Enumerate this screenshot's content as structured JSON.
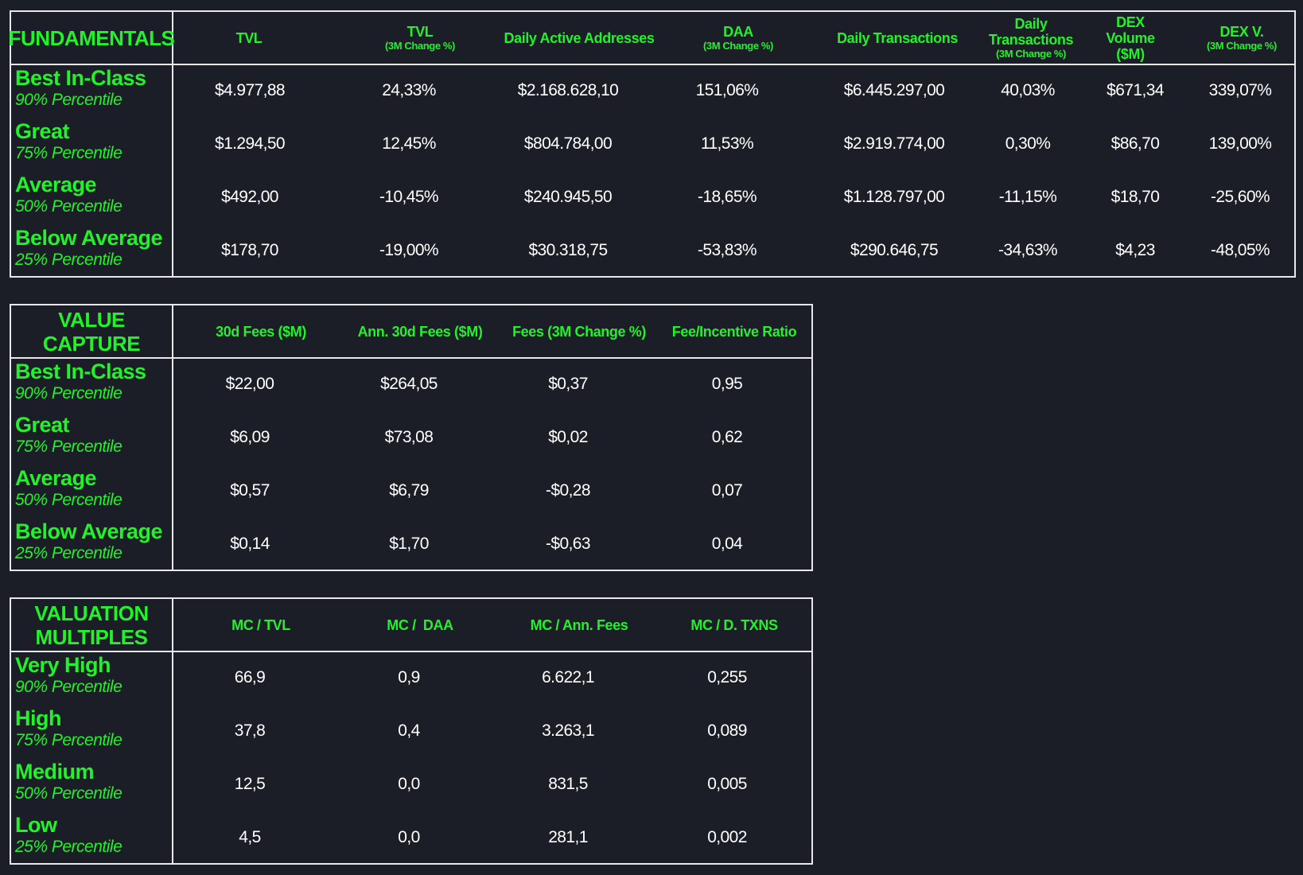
{
  "colors": {
    "background": "#1c1e27",
    "accent": "#22f22a",
    "text": "#ffffff",
    "border": "#e8e8ec"
  },
  "fundamentals": {
    "title": "FUNDAMENTALS",
    "columns": [
      {
        "label": "TVL",
        "sub": ""
      },
      {
        "label": "TVL",
        "sub": "(3M Change %)"
      },
      {
        "label": "Daily Active Addresses",
        "sub": ""
      },
      {
        "label": "DAA",
        "sub": "(3M Change %)"
      },
      {
        "label": "Daily Transactions",
        "sub": ""
      },
      {
        "label": "Daily Transactions",
        "sub": "(3M Change %)"
      },
      {
        "label": "DEX Volume ($M)",
        "sub": ""
      },
      {
        "label": "DEX V.",
        "sub": "(3M Change %)"
      }
    ],
    "rows": [
      {
        "label": "Best In-Class",
        "sub": "90% Percentile",
        "values": [
          "$4.977,88",
          "24,33%",
          "$2.168.628,10",
          "151,06%",
          "$6.445.297,00",
          "40,03%",
          "$671,34",
          "339,07%"
        ]
      },
      {
        "label": "Great",
        "sub": "75% Percentile",
        "values": [
          "$1.294,50",
          "12,45%",
          "$804.784,00",
          "11,53%",
          "$2.919.774,00",
          "0,30%",
          "$86,70",
          "139,00%"
        ]
      },
      {
        "label": "Average",
        "sub": "50% Percentile",
        "values": [
          "$492,00",
          "-10,45%",
          "$240.945,50",
          "-18,65%",
          "$1.128.797,00",
          "-11,15%",
          "$18,70",
          "-25,60%"
        ]
      },
      {
        "label": "Below Average",
        "sub": "25% Percentile",
        "values": [
          "$178,70",
          "-19,00%",
          "$30.318,75",
          "-53,83%",
          "$290.646,75",
          "-34,63%",
          "$4,23",
          "-48,05%"
        ]
      }
    ]
  },
  "value_capture": {
    "title": "VALUE CAPTURE",
    "columns": [
      {
        "label": "30d Fees ($M)",
        "sub": ""
      },
      {
        "label": "Ann. 30d Fees ($M)",
        "sub": ""
      },
      {
        "label": "Fees (3M Change %)",
        "sub": ""
      },
      {
        "label": "Fee/Incentive Ratio",
        "sub": ""
      }
    ],
    "rows": [
      {
        "label": "Best In-Class",
        "sub": "90% Percentile",
        "values": [
          "$22,00",
          "$264,05",
          "$0,37",
          "0,95"
        ]
      },
      {
        "label": "Great",
        "sub": "75% Percentile",
        "values": [
          "$6,09",
          "$73,08",
          "$0,02",
          "0,62"
        ]
      },
      {
        "label": "Average",
        "sub": "50% Percentile",
        "values": [
          "$0,57",
          "$6,79",
          "-$0,28",
          "0,07"
        ]
      },
      {
        "label": "Below Average",
        "sub": "25% Percentile",
        "values": [
          "$0,14",
          "$1,70",
          "-$0,63",
          "0,04"
        ]
      }
    ]
  },
  "valuation_multiples": {
    "title": "VALUATION MULTIPLES",
    "columns": [
      {
        "label": "MC / TVL",
        "sub": ""
      },
      {
        "label": "MC /  DAA",
        "sub": ""
      },
      {
        "label": "MC / Ann. Fees",
        "sub": ""
      },
      {
        "label": "MC / D. TXNS",
        "sub": ""
      }
    ],
    "rows": [
      {
        "label": "Very High",
        "sub": "90% Percentile",
        "values": [
          "66,9",
          "0,9",
          "6.622,1",
          "0,255"
        ]
      },
      {
        "label": "High",
        "sub": "75% Percentile",
        "values": [
          "37,8",
          "0,4",
          "3.263,1",
          "0,089"
        ]
      },
      {
        "label": "Medium",
        "sub": "50% Percentile",
        "values": [
          "12,5",
          "0,0",
          "831,5",
          "0,005"
        ]
      },
      {
        "label": "Low",
        "sub": "25% Percentile",
        "values": [
          "4,5",
          "0,0",
          "281,1",
          "0,002"
        ]
      }
    ]
  }
}
